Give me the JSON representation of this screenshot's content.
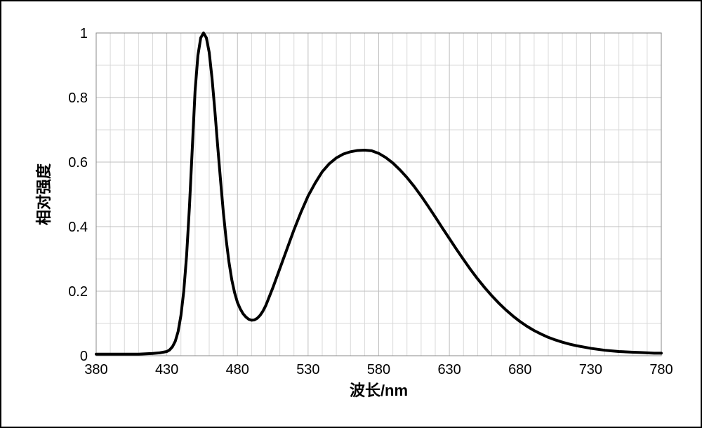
{
  "spectrum_chart": {
    "type": "line",
    "title": "",
    "xlabel": "波长/nm",
    "ylabel": "相对强度",
    "label_fontsize": 22,
    "tick_fontsize": 20,
    "xlim": [
      380,
      780
    ],
    "ylim": [
      0,
      1
    ],
    "xtick_major_step": 50,
    "xtick_minor_step": 10,
    "ytick_major_step": 0.2,
    "ytick_minor_count_between": 1,
    "background_color": "#ffffff",
    "grid_major_color": "#bfbfbf",
    "grid_minor_color": "#d9d9d9",
    "plot_border_color": "#888888",
    "line_color": "#000000",
    "line_width": 4,
    "x": [
      380,
      385,
      390,
      395,
      400,
      405,
      410,
      415,
      420,
      425,
      430,
      432,
      434,
      436,
      438,
      440,
      442,
      444,
      446,
      448,
      450,
      452,
      454,
      456,
      458,
      460,
      462,
      464,
      466,
      468,
      470,
      472,
      474,
      476,
      478,
      480,
      482,
      484,
      486,
      488,
      490,
      492,
      494,
      496,
      498,
      500,
      505,
      510,
      515,
      520,
      525,
      530,
      535,
      540,
      545,
      550,
      555,
      560,
      565,
      570,
      575,
      580,
      585,
      590,
      595,
      600,
      605,
      610,
      615,
      620,
      625,
      630,
      635,
      640,
      645,
      650,
      655,
      660,
      665,
      670,
      675,
      680,
      685,
      690,
      695,
      700,
      705,
      710,
      715,
      720,
      725,
      730,
      735,
      740,
      745,
      750,
      755,
      760,
      765,
      770,
      775,
      780
    ],
    "y": [
      0.005,
      0.005,
      0.005,
      0.005,
      0.005,
      0.005,
      0.005,
      0.006,
      0.007,
      0.009,
      0.013,
      0.018,
      0.028,
      0.045,
      0.075,
      0.125,
      0.2,
      0.31,
      0.46,
      0.64,
      0.82,
      0.93,
      0.985,
      1.0,
      0.985,
      0.94,
      0.86,
      0.76,
      0.65,
      0.545,
      0.445,
      0.36,
      0.29,
      0.235,
      0.195,
      0.165,
      0.145,
      0.13,
      0.12,
      0.113,
      0.11,
      0.111,
      0.116,
      0.125,
      0.138,
      0.155,
      0.21,
      0.27,
      0.33,
      0.39,
      0.445,
      0.495,
      0.535,
      0.57,
      0.595,
      0.613,
      0.625,
      0.632,
      0.636,
      0.637,
      0.635,
      0.627,
      0.614,
      0.597,
      0.576,
      0.552,
      0.525,
      0.495,
      0.463,
      0.43,
      0.396,
      0.363,
      0.33,
      0.298,
      0.267,
      0.238,
      0.211,
      0.186,
      0.163,
      0.142,
      0.123,
      0.106,
      0.091,
      0.078,
      0.067,
      0.057,
      0.049,
      0.042,
      0.036,
      0.031,
      0.027,
      0.023,
      0.02,
      0.017,
      0.015,
      0.013,
      0.012,
      0.011,
      0.01,
      0.009,
      0.008,
      0.008
    ]
  }
}
